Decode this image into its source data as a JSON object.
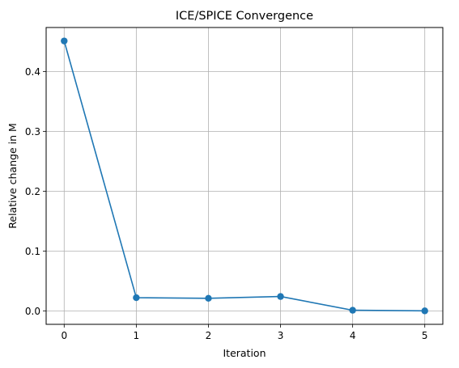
{
  "chart_data": {
    "type": "line",
    "title": "ICE/SPICE Convergence",
    "xlabel": "Iteration",
    "ylabel": "Relative change in M",
    "x": [
      0,
      1,
      2,
      3,
      4,
      5
    ],
    "series": [
      {
        "values": [
          0.451,
          0.022,
          0.021,
          0.024,
          0.001,
          0.0
        ],
        "color": "#1f77b4",
        "marker": "circle"
      }
    ],
    "xlim": [
      -0.25,
      5.25
    ],
    "ylim": [
      -0.0225,
      0.4735
    ],
    "xticks": [
      0,
      1,
      2,
      3,
      4,
      5
    ],
    "xtick_labels": [
      "0",
      "1",
      "2",
      "3",
      "4",
      "5"
    ],
    "yticks": [
      0.0,
      0.1,
      0.2,
      0.3,
      0.4
    ],
    "ytick_labels": [
      "0.0",
      "0.1",
      "0.2",
      "0.3",
      "0.4"
    ],
    "grid": true,
    "grid_color": "#b0b0b0",
    "axes_color": "#000000"
  }
}
